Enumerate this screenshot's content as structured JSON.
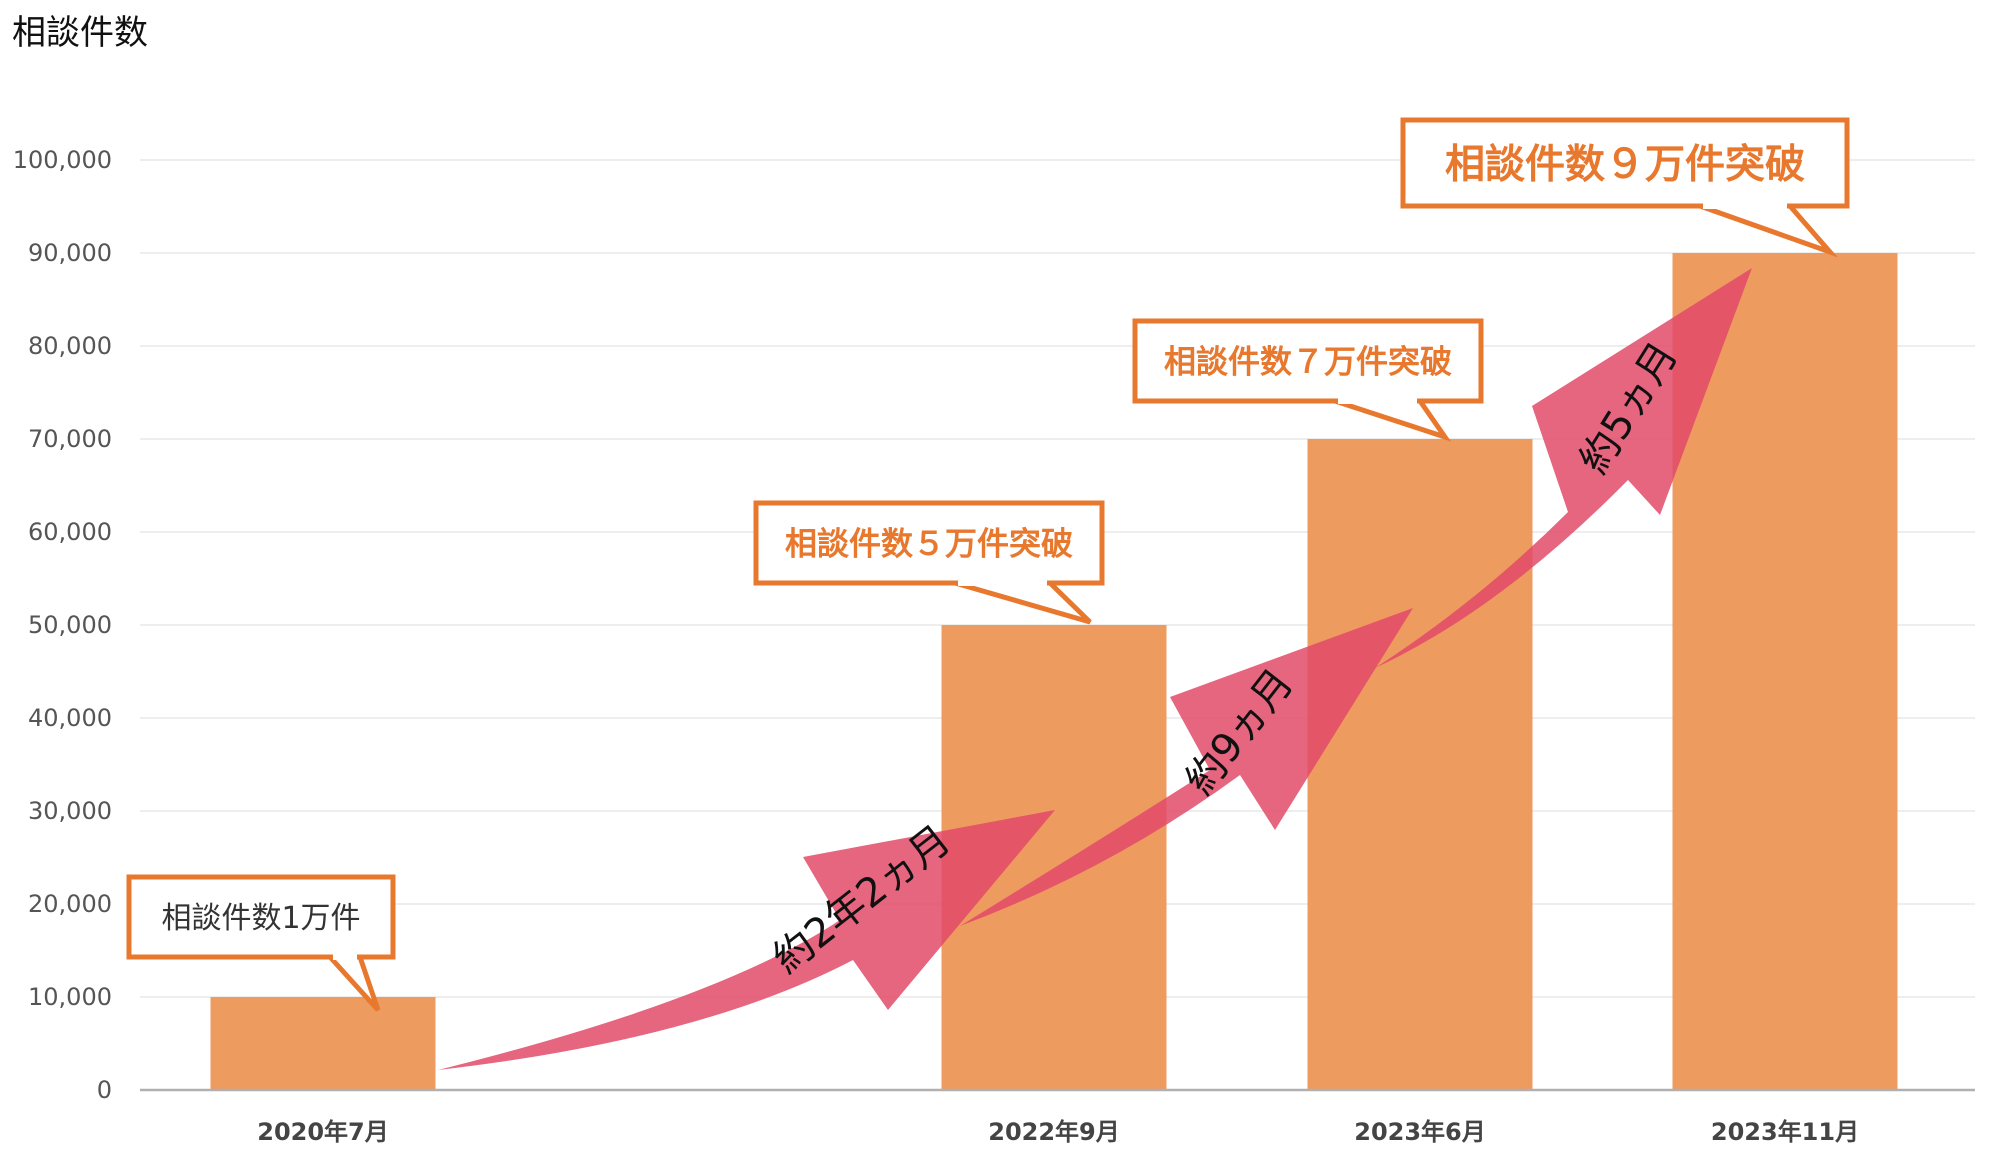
{
  "chart_data": {
    "type": "bar",
    "title": "相談件数",
    "xlabel": "",
    "ylabel": "",
    "categories": [
      "2020年7月",
      "2022年9月",
      "2023年6月",
      "2023年11月"
    ],
    "values": [
      10000,
      50000,
      70000,
      90000
    ],
    "ylim": [
      0,
      100000
    ],
    "yticks": [
      0,
      10000,
      20000,
      30000,
      40000,
      50000,
      60000,
      70000,
      80000,
      90000,
      100000
    ],
    "ytick_labels": [
      "0",
      "10,000",
      "20,000",
      "30,000",
      "40,000",
      "50,000",
      "60,000",
      "70,000",
      "80,000",
      "90,000",
      "100,000"
    ],
    "grid": true,
    "colors": {
      "bar": "#EE9B5F",
      "callout_border": "#E8782E",
      "arrow": "#E24A68",
      "grid": "#E8E8E8",
      "axis": "#B0B0B0"
    },
    "annotations": {
      "callouts": [
        "相談件数1万件",
        "相談件数５万件突破",
        "相談件数７万件突破",
        "相談件数９万件突破"
      ],
      "arrows": [
        "約2年2ヵ月",
        "約9ヵ月",
        "約5ヵ月"
      ]
    }
  }
}
